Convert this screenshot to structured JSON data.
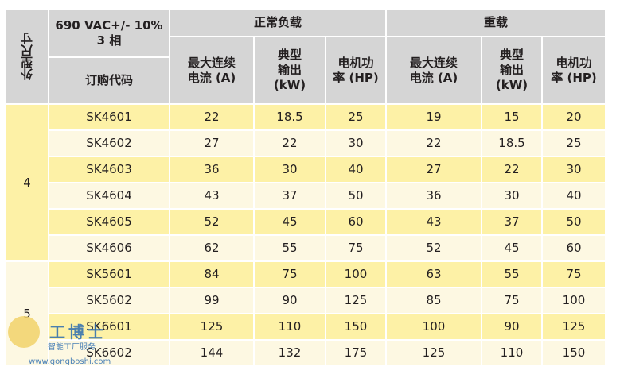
{
  "header": {
    "size_label": "外型尺寸",
    "voltage": "690 VAC+/- 10%\n3 相",
    "order_code": "订购代码",
    "normal_load": "正常负载",
    "heavy_load": "重载",
    "columns": [
      "最大连续\n电流 (A)",
      "典型\n输出\n(kW)",
      "电机功\n率 (HP)",
      "最大连续\n电流 (A)",
      "典型\n输出\n(kW)",
      "电机功\n率 (HP)"
    ]
  },
  "groups": [
    {
      "size": "4",
      "rows": [
        [
          "SK4601",
          22,
          18.5,
          25,
          19,
          15,
          20
        ],
        [
          "SK4602",
          27,
          22,
          30,
          22,
          18.5,
          25
        ],
        [
          "SK4603",
          36,
          30,
          40,
          27,
          22,
          30
        ],
        [
          "SK4604",
          43,
          37,
          50,
          36,
          30,
          40
        ],
        [
          "SK4605",
          52,
          45,
          60,
          43,
          37,
          50
        ],
        [
          "SK4606",
          62,
          55,
          75,
          52,
          45,
          60
        ]
      ]
    },
    {
      "size": "5",
      "rows": [
        [
          "SK5601",
          84,
          75,
          100,
          63,
          55,
          75
        ],
        [
          "SK5602",
          99,
          90,
          125,
          85,
          75,
          100
        ],
        [
          "SK6601",
          125,
          110,
          150,
          100,
          90,
          125
        ],
        [
          "SK6602",
          144,
          132,
          175,
          125,
          110,
          150
        ]
      ]
    }
  ],
  "watermark": {
    "brand": "工博士",
    "tagline": "智能工厂服务",
    "url": "www.gongboshi.com"
  }
}
